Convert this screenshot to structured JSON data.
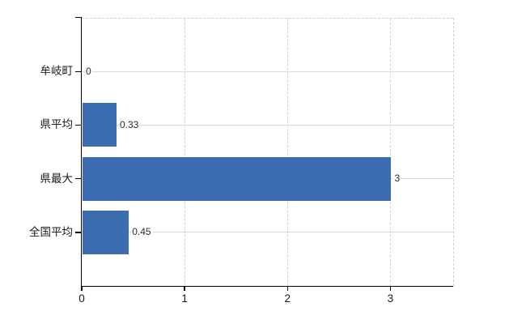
{
  "chart_data": {
    "type": "bar",
    "orientation": "horizontal",
    "categories": [
      "牟岐町",
      "県平均",
      "県最大",
      "全国平均"
    ],
    "values": [
      0,
      0.33,
      3,
      0.45
    ],
    "value_labels": [
      "0",
      "0.33",
      "3",
      "0.45"
    ],
    "x_ticks": [
      0,
      1,
      2,
      3
    ],
    "xlim": [
      0,
      3.61
    ],
    "grid": true,
    "legend": false,
    "bar_color": "#3c6db0",
    "h_grid_color": "#d8ded3",
    "v_grid_color": "#d7d0d5",
    "axis_color": "#000000",
    "tick_label_color": "#1a1a1a",
    "value_label_color": "#2b2b2b"
  }
}
